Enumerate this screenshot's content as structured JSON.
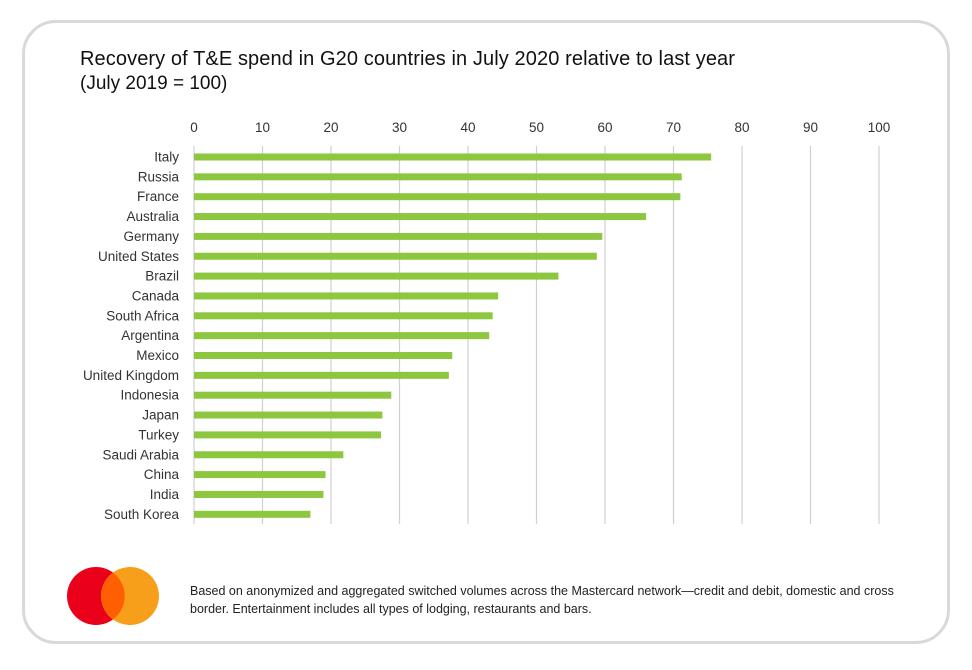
{
  "title": "Recovery of T&E spend in G20 countries in July 2020 relative to last year",
  "subtitle": "(July 2019 = 100)",
  "footnote": "Based on anonymized and aggregated switched volumes across the Mastercard network—credit and debit, domestic and cross border. Entertainment includes all types of lodging, restaurants and bars.",
  "logo": {
    "icon": "mastercard-logo-icon",
    "colors": [
      "#eb001b",
      "#f79e1b",
      "#ff5f00"
    ]
  },
  "chart_data": {
    "type": "bar",
    "orientation": "horizontal",
    "title": "Recovery of T&E spend in G20 countries in July 2020 relative to last year",
    "subtitle": "(July 2019 = 100)",
    "categories": [
      "Italy",
      "Russia",
      "France",
      "Australia",
      "Germany",
      "United States",
      "Brazil",
      "Canada",
      "South Africa",
      "Argentina",
      "Mexico",
      "United Kingdom",
      "Indonesia",
      "Japan",
      "Turkey",
      "Saudi Arabia",
      "China",
      "India",
      "South Korea"
    ],
    "values": [
      75.5,
      71.2,
      71.0,
      66.0,
      59.6,
      58.8,
      53.2,
      44.4,
      43.6,
      43.1,
      37.7,
      37.2,
      28.8,
      27.5,
      27.3,
      21.8,
      19.2,
      18.9,
      17.0
    ],
    "xlim": [
      0,
      100
    ],
    "xticks": [
      0,
      10,
      20,
      30,
      40,
      50,
      60,
      70,
      80,
      90,
      100
    ],
    "axis_position": "top",
    "grid": "vertical",
    "bar_color": "#8dc63f",
    "grid_color": "#d0d0d0"
  }
}
